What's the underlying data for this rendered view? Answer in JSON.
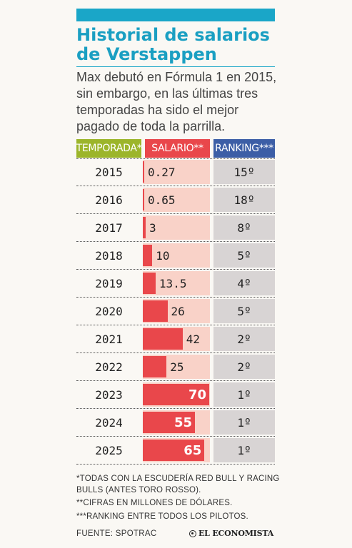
{
  "title": "Historial de salarios de Verstappen",
  "subtitle": "Max debutó en Fórmula 1 en 2015, sin embargo, en las últimas tres temporadas ha sido el mejor pagado de toda la parrilla.",
  "headers": {
    "season": "TEMPORADA*",
    "salary": "SALARIO**",
    "ranking": "RANKING***"
  },
  "colors": {
    "accent": "#1aa6c8",
    "season_header": "#9cb52a",
    "salary_bar": "#e9474b",
    "salary_bg": "#f9d2c8",
    "ranking_header": "#3c5ea6",
    "ranking_bg": "#d8d4d4"
  },
  "chart_data": {
    "type": "table",
    "title": "Historial de salarios de Verstappen",
    "columns": [
      "TEMPORADA*",
      "SALARIO**",
      "RANKING***"
    ],
    "rows": [
      {
        "season": "2015",
        "salary": 0.27,
        "salary_label": "0.27",
        "ranking": "15º"
      },
      {
        "season": "2016",
        "salary": 0.65,
        "salary_label": "0.65",
        "ranking": "18º"
      },
      {
        "season": "2017",
        "salary": 3,
        "salary_label": "3",
        "ranking": "8º"
      },
      {
        "season": "2018",
        "salary": 10,
        "salary_label": "10",
        "ranking": "5º"
      },
      {
        "season": "2019",
        "salary": 13.5,
        "salary_label": "13.5",
        "ranking": "4º"
      },
      {
        "season": "2020",
        "salary": 26,
        "salary_label": "26",
        "ranking": "5º"
      },
      {
        "season": "2021",
        "salary": 42,
        "salary_label": "42",
        "ranking": "2º"
      },
      {
        "season": "2022",
        "salary": 25,
        "salary_label": "25",
        "ranking": "2º"
      },
      {
        "season": "2023",
        "salary": 70,
        "salary_label": "70",
        "ranking": "1º"
      },
      {
        "season": "2024",
        "salary": 55,
        "salary_label": "55",
        "ranking": "1º"
      },
      {
        "season": "2025",
        "salary": 65,
        "salary_label": "65",
        "ranking": "1º"
      }
    ],
    "salary_max": 70
  },
  "notes": [
    "*TODAS CON LA ESCUDERÍA RED BULL Y RACING BULLS (ANTES TORO ROSSO).",
    "**CIFRAS EN MILLONES DE DÓLARES.",
    "***RANKING ENTRE TODOS LOS PILOTOS."
  ],
  "source": "FUENTE: SPOTRAC",
  "logo_text": "EL ECONOMISTA"
}
